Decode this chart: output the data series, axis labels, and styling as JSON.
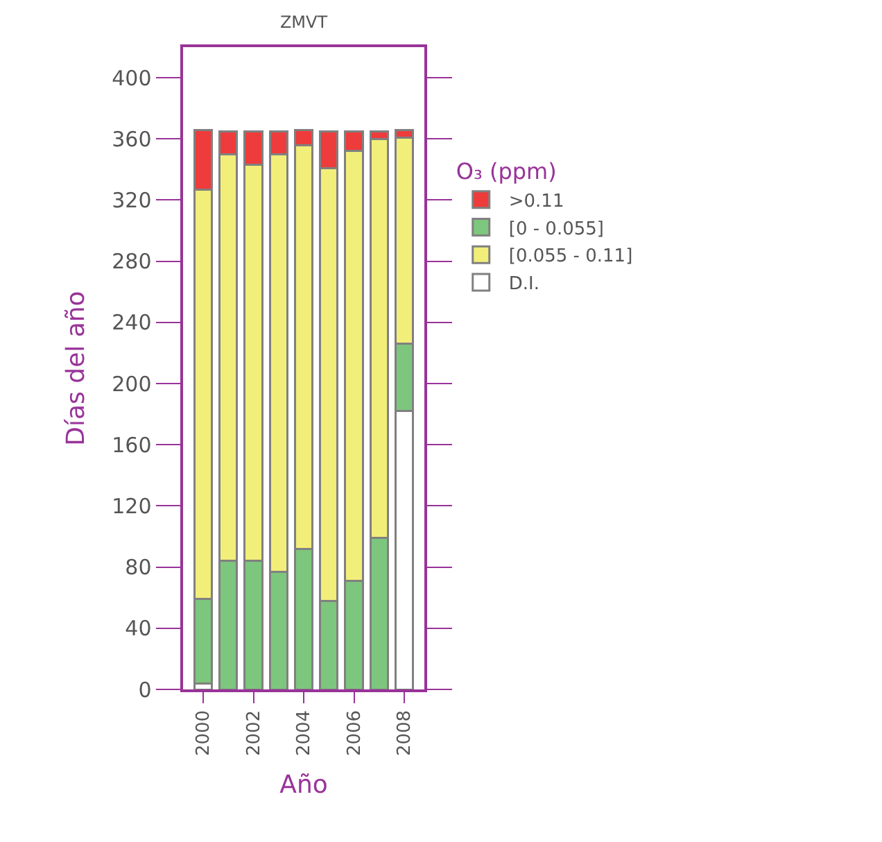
{
  "chart_data": {
    "type": "bar",
    "title": "ZMVT",
    "xlabel": "Año",
    "ylabel": "Días del año",
    "legend_title": "O₃ (ppm)",
    "categories": [
      "2000",
      null,
      "2002",
      null,
      "2004",
      null,
      "2006",
      null,
      "2008"
    ],
    "stacked": true,
    "ylim": [
      0,
      420
    ],
    "yticks": [
      0,
      40,
      80,
      120,
      160,
      200,
      240,
      280,
      320,
      360,
      400
    ],
    "legend": "right",
    "series": [
      {
        "name": "D.I.",
        "color": "#ffffff",
        "values": [
          4,
          0,
          0,
          0,
          0,
          0,
          0,
          0,
          182
        ]
      },
      {
        "name": "[0 - 0.055]",
        "color": "#7dc67d",
        "values": [
          55,
          84,
          84,
          77,
          92,
          58,
          71,
          99,
          44
        ]
      },
      {
        "name": "[0.055 - 0.11]",
        "color": "#f2ee7a",
        "values": [
          268,
          266,
          259,
          273,
          264,
          283,
          281,
          261,
          135
        ]
      },
      {
        "name": ">0.11",
        "color": "#ee3b3b",
        "values": [
          39,
          15,
          22,
          15,
          10,
          24,
          13,
          5,
          5
        ]
      }
    ]
  }
}
